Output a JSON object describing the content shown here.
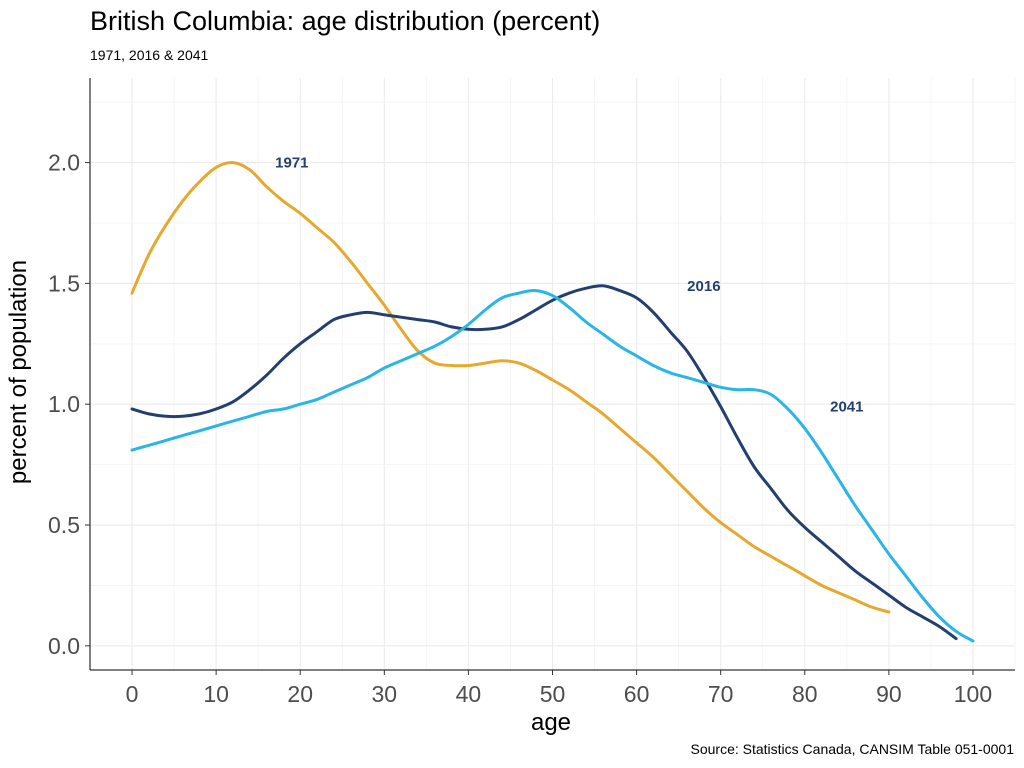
{
  "chart_data": {
    "type": "line",
    "title": "British Columbia: age distribution (percent)",
    "subtitle": "1971, 2016 & 2041",
    "caption": "Source: Statistics Canada, CANSIM Table 051-0001",
    "xlabel": "age",
    "ylabel": "percent of population",
    "xlim": [
      -5,
      105
    ],
    "ylim": [
      -0.1,
      2.35
    ],
    "x_ticks": [
      0,
      10,
      20,
      30,
      40,
      50,
      60,
      70,
      80,
      90,
      100
    ],
    "x_tick_labels": [
      "0",
      "10",
      "20",
      "30",
      "40",
      "50",
      "60",
      "70",
      "80",
      "90",
      "100"
    ],
    "y_ticks": [
      0,
      0.5,
      1,
      1.5,
      2
    ],
    "y_tick_labels": [
      "0.0",
      "0.5",
      "1.0",
      "1.5",
      "2.0"
    ],
    "grid": true,
    "legend": "none (direct labels)",
    "series": [
      {
        "name": "1971",
        "color": "#e6a82e",
        "label_at": [
          19,
          2.0
        ],
        "points": [
          [
            0,
            1.46
          ],
          [
            2,
            1.62
          ],
          [
            4,
            1.74
          ],
          [
            6,
            1.84
          ],
          [
            8,
            1.92
          ],
          [
            10,
            1.98
          ],
          [
            12,
            2.0
          ],
          [
            14,
            1.97
          ],
          [
            16,
            1.9
          ],
          [
            18,
            1.84
          ],
          [
            20,
            1.79
          ],
          [
            22,
            1.73
          ],
          [
            24,
            1.67
          ],
          [
            26,
            1.59
          ],
          [
            28,
            1.5
          ],
          [
            30,
            1.41
          ],
          [
            32,
            1.31
          ],
          [
            34,
            1.22
          ],
          [
            36,
            1.17
          ],
          [
            38,
            1.16
          ],
          [
            40,
            1.16
          ],
          [
            42,
            1.17
          ],
          [
            44,
            1.18
          ],
          [
            46,
            1.17
          ],
          [
            48,
            1.14
          ],
          [
            50,
            1.1
          ],
          [
            52,
            1.06
          ],
          [
            54,
            1.01
          ],
          [
            56,
            0.96
          ],
          [
            58,
            0.9
          ],
          [
            60,
            0.84
          ],
          [
            62,
            0.78
          ],
          [
            64,
            0.71
          ],
          [
            66,
            0.64
          ],
          [
            68,
            0.57
          ],
          [
            70,
            0.51
          ],
          [
            72,
            0.46
          ],
          [
            74,
            0.41
          ],
          [
            76,
            0.37
          ],
          [
            78,
            0.33
          ],
          [
            80,
            0.29
          ],
          [
            82,
            0.25
          ],
          [
            84,
            0.22
          ],
          [
            86,
            0.19
          ],
          [
            88,
            0.16
          ],
          [
            90,
            0.14
          ]
        ]
      },
      {
        "name": "2016",
        "color": "#233f6d",
        "label_at": [
          68,
          1.49
        ],
        "points": [
          [
            0,
            0.98
          ],
          [
            2,
            0.96
          ],
          [
            4,
            0.95
          ],
          [
            6,
            0.95
          ],
          [
            8,
            0.96
          ],
          [
            10,
            0.98
          ],
          [
            12,
            1.01
          ],
          [
            14,
            1.06
          ],
          [
            16,
            1.12
          ],
          [
            18,
            1.19
          ],
          [
            20,
            1.25
          ],
          [
            22,
            1.3
          ],
          [
            24,
            1.35
          ],
          [
            26,
            1.37
          ],
          [
            28,
            1.38
          ],
          [
            30,
            1.37
          ],
          [
            32,
            1.36
          ],
          [
            34,
            1.35
          ],
          [
            36,
            1.34
          ],
          [
            38,
            1.32
          ],
          [
            40,
            1.31
          ],
          [
            42,
            1.31
          ],
          [
            44,
            1.32
          ],
          [
            46,
            1.35
          ],
          [
            48,
            1.39
          ],
          [
            50,
            1.43
          ],
          [
            52,
            1.46
          ],
          [
            54,
            1.48
          ],
          [
            56,
            1.49
          ],
          [
            58,
            1.47
          ],
          [
            60,
            1.44
          ],
          [
            62,
            1.38
          ],
          [
            64,
            1.3
          ],
          [
            66,
            1.22
          ],
          [
            68,
            1.11
          ],
          [
            70,
            0.99
          ],
          [
            72,
            0.86
          ],
          [
            74,
            0.74
          ],
          [
            76,
            0.65
          ],
          [
            78,
            0.56
          ],
          [
            80,
            0.49
          ],
          [
            82,
            0.43
          ],
          [
            84,
            0.37
          ],
          [
            86,
            0.31
          ],
          [
            88,
            0.26
          ],
          [
            90,
            0.21
          ],
          [
            92,
            0.16
          ],
          [
            94,
            0.12
          ],
          [
            96,
            0.08
          ],
          [
            98,
            0.03
          ]
        ]
      },
      {
        "name": "2041",
        "color": "#29b6e6",
        "label_at": [
          85,
          0.99
        ],
        "points": [
          [
            0,
            0.81
          ],
          [
            2,
            0.83
          ],
          [
            4,
            0.85
          ],
          [
            6,
            0.87
          ],
          [
            8,
            0.89
          ],
          [
            10,
            0.91
          ],
          [
            12,
            0.93
          ],
          [
            14,
            0.95
          ],
          [
            16,
            0.97
          ],
          [
            18,
            0.98
          ],
          [
            20,
            1.0
          ],
          [
            22,
            1.02
          ],
          [
            24,
            1.05
          ],
          [
            26,
            1.08
          ],
          [
            28,
            1.11
          ],
          [
            30,
            1.15
          ],
          [
            32,
            1.18
          ],
          [
            34,
            1.21
          ],
          [
            36,
            1.24
          ],
          [
            38,
            1.28
          ],
          [
            40,
            1.33
          ],
          [
            42,
            1.39
          ],
          [
            44,
            1.44
          ],
          [
            46,
            1.46
          ],
          [
            48,
            1.47
          ],
          [
            50,
            1.45
          ],
          [
            52,
            1.4
          ],
          [
            54,
            1.34
          ],
          [
            56,
            1.29
          ],
          [
            58,
            1.24
          ],
          [
            60,
            1.2
          ],
          [
            62,
            1.16
          ],
          [
            64,
            1.13
          ],
          [
            66,
            1.11
          ],
          [
            68,
            1.09
          ],
          [
            70,
            1.07
          ],
          [
            72,
            1.06
          ],
          [
            74,
            1.06
          ],
          [
            76,
            1.04
          ],
          [
            78,
            0.98
          ],
          [
            80,
            0.9
          ],
          [
            82,
            0.8
          ],
          [
            84,
            0.69
          ],
          [
            86,
            0.58
          ],
          [
            88,
            0.48
          ],
          [
            90,
            0.38
          ],
          [
            92,
            0.29
          ],
          [
            94,
            0.2
          ],
          [
            96,
            0.12
          ],
          [
            98,
            0.06
          ],
          [
            100,
            0.02
          ]
        ]
      }
    ]
  }
}
